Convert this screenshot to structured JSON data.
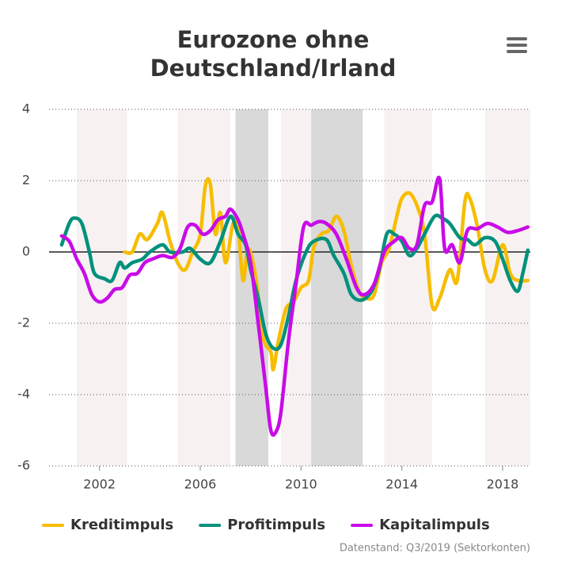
{
  "chart_data": {
    "type": "line",
    "title": [
      "Eurozone ohne",
      "Deutschland/Irland"
    ],
    "source": "Datenstand: Q3/2019 (Sektorkonten)",
    "xlim": [
      2000,
      2019.1
    ],
    "xticks": [
      2002,
      2006,
      2010,
      2014,
      2018
    ],
    "ylim": [
      -6,
      4
    ],
    "yticks": [
      -6,
      -4,
      -2,
      0,
      2,
      4
    ],
    "grid": true,
    "legend": "bottom",
    "shaded_regions": [
      {
        "start": 2001.1,
        "end": 2003.1,
        "color": "#f7f2f1"
      },
      {
        "start": 2005.1,
        "end": 2007.2,
        "color": "#f7f2f1"
      },
      {
        "start": 2007.4,
        "end": 2008.7,
        "color": "#d9d9d9"
      },
      {
        "start": 2009.2,
        "end": 2010.4,
        "color": "#f7f2f1"
      },
      {
        "start": 2010.4,
        "end": 2012.45,
        "color": "#d9d9d9"
      },
      {
        "start": 2013.3,
        "end": 2015.2,
        "color": "#f7f2f1"
      },
      {
        "start": 2017.3,
        "end": 2019.1,
        "color": "#f7f2f1"
      }
    ],
    "series": [
      {
        "name": "Kreditimpuls",
        "color": "#f7bd00",
        "x": [
          2003.0,
          2003.3,
          2003.6,
          2003.9,
          2004.3,
          2004.5,
          2004.8,
          2005.1,
          2005.4,
          2005.7,
          2006.0,
          2006.2,
          2006.4,
          2006.6,
          2006.8,
          2007.0,
          2007.3,
          2007.5,
          2007.7,
          2007.9,
          2008.2,
          2008.5,
          2008.8,
          2008.9,
          2009.1,
          2009.4,
          2009.7,
          2010.0,
          2010.3,
          2010.5,
          2010.8,
          2011.1,
          2011.4,
          2011.7,
          2012.0,
          2012.3,
          2012.6,
          2012.9,
          2013.2,
          2013.5,
          2013.8,
          2014.0,
          2014.3,
          2014.6,
          2014.9,
          2015.2,
          2015.5,
          2015.9,
          2016.2,
          2016.5,
          2016.7,
          2017.0,
          2017.3,
          2017.6,
          2018.0,
          2018.3,
          2018.6,
          2019.0
        ],
        "values": [
          0,
          0,
          0.5,
          0.35,
          0.8,
          1.1,
          0.3,
          -0.3,
          -0.5,
          0,
          0.5,
          1.85,
          1.9,
          0.5,
          1.1,
          -0.3,
          0.8,
          0.7,
          -0.8,
          0.1,
          -0.7,
          -2.4,
          -2.8,
          -3.3,
          -2.5,
          -1.6,
          -1.4,
          -1.0,
          -0.8,
          0.1,
          0.5,
          0.6,
          1.0,
          0.6,
          -0.4,
          -1.1,
          -1.3,
          -1.2,
          -0.3,
          0.1,
          1.0,
          1.5,
          1.65,
          1.3,
          0.5,
          -1.5,
          -1.3,
          -0.5,
          -0.8,
          1.4,
          1.5,
          0.7,
          -0.5,
          -0.8,
          0.2,
          -0.6,
          -0.8,
          -0.8
        ]
      },
      {
        "name": "Profitimpuls",
        "color": "#00917c",
        "x": [
          2000.5,
          2000.8,
          2001.0,
          2001.3,
          2001.6,
          2001.8,
          2002.2,
          2002.5,
          2002.8,
          2003.0,
          2003.3,
          2003.7,
          2004.0,
          2004.5,
          2004.8,
          2005.3,
          2005.6,
          2006.0,
          2006.4,
          2006.8,
          2007.2,
          2007.5,
          2007.8,
          2008.0,
          2008.3,
          2008.6,
          2008.9,
          2009.2,
          2009.5,
          2009.8,
          2010.2,
          2010.5,
          2011.0,
          2011.3,
          2011.7,
          2012.0,
          2012.4,
          2012.8,
          2013.1,
          2013.4,
          2013.7,
          2014.0,
          2014.3,
          2014.6,
          2014.9,
          2015.3,
          2015.6,
          2015.9,
          2016.3,
          2016.6,
          2016.9,
          2017.3,
          2017.7,
          2018.0,
          2018.3,
          2018.6,
          2018.8,
          2019.0
        ],
        "values": [
          0.2,
          0.8,
          0.95,
          0.8,
          0,
          -0.6,
          -0.75,
          -0.8,
          -0.3,
          -0.45,
          -0.3,
          -0.2,
          0,
          0.2,
          0,
          0,
          0.1,
          -0.2,
          -0.3,
          0.3,
          1.0,
          0.5,
          0.2,
          -0.5,
          -1.3,
          -2.3,
          -2.7,
          -2.6,
          -1.8,
          -0.8,
          0,
          0.3,
          0.35,
          -0.1,
          -0.6,
          -1.2,
          -1.35,
          -1.1,
          -0.5,
          0.5,
          0.5,
          0.3,
          -0.1,
          0.1,
          0.5,
          1.0,
          0.95,
          0.8,
          0.4,
          0.35,
          0.2,
          0.4,
          0.3,
          -0.2,
          -0.8,
          -1.1,
          -0.6,
          0.05
        ]
      },
      {
        "name": "Kapitalimpuls",
        "color": "#c90be8",
        "x": [
          2000.5,
          2000.8,
          2001.1,
          2001.4,
          2001.7,
          2002.0,
          2002.3,
          2002.6,
          2002.9,
          2003.2,
          2003.5,
          2003.8,
          2004.1,
          2004.5,
          2004.9,
          2005.2,
          2005.5,
          2005.8,
          2006.1,
          2006.4,
          2006.7,
          2007.0,
          2007.2,
          2007.5,
          2007.7,
          2008.0,
          2008.3,
          2008.6,
          2008.8,
          2009.0,
          2009.2,
          2009.5,
          2009.8,
          2010.1,
          2010.4,
          2010.7,
          2011.0,
          2011.4,
          2011.8,
          2012.2,
          2012.5,
          2012.9,
          2013.3,
          2013.7,
          2014.0,
          2014.3,
          2014.6,
          2014.9,
          2015.2,
          2015.5,
          2015.7,
          2016.0,
          2016.3,
          2016.6,
          2017.0,
          2017.4,
          2017.8,
          2018.2,
          2018.6,
          2019.0
        ],
        "values": [
          0.45,
          0.3,
          -0.2,
          -0.6,
          -1.2,
          -1.4,
          -1.3,
          -1.05,
          -1.0,
          -0.65,
          -0.6,
          -0.3,
          -0.2,
          -0.1,
          -0.15,
          0.1,
          0.7,
          0.75,
          0.5,
          0.6,
          0.9,
          1.0,
          1.2,
          0.9,
          0.5,
          -0.3,
          -2.0,
          -3.8,
          -5.0,
          -5.05,
          -4.5,
          -2.5,
          -0.9,
          0.7,
          0.75,
          0.85,
          0.8,
          0.5,
          -0.2,
          -1.0,
          -1.2,
          -0.9,
          0,
          0.3,
          0.4,
          0.1,
          0.2,
          1.3,
          1.4,
          2.05,
          0.1,
          0.2,
          -0.3,
          0.6,
          0.65,
          0.8,
          0.7,
          0.55,
          0.6,
          0.7
        ]
      }
    ]
  }
}
